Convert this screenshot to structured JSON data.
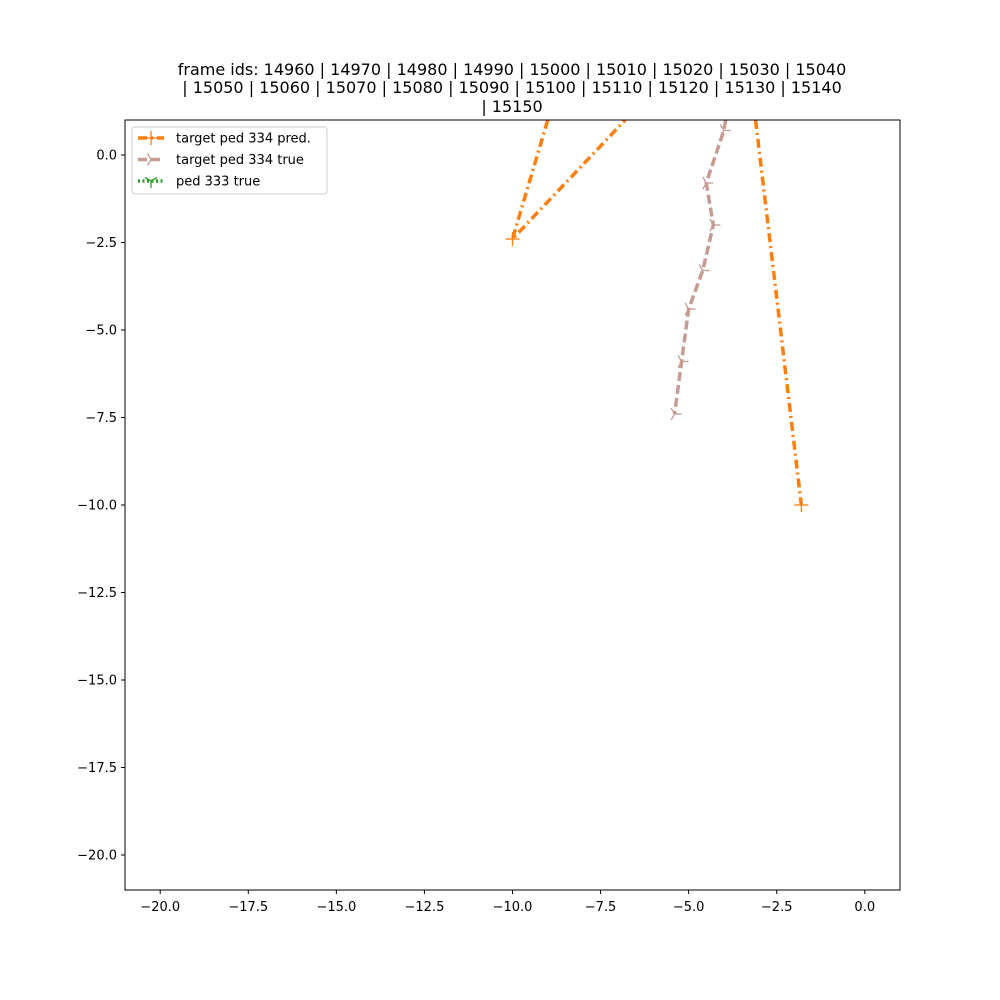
{
  "chart_data": {
    "type": "line",
    "title_lines": [
      "frame ids: 14960 | 14970 | 14980 | 14990 | 15000 | 15010 | 15020 | 15030 | 15040",
      "| 15050 | 15060 | 15070 | 15080 | 15090 | 15100 | 15110 | 15120 | 15130 | 15140",
      "| 15150"
    ],
    "xlabel": "",
    "ylabel": "",
    "xlim": [
      -21.0,
      1.0
    ],
    "ylim": [
      -21.0,
      1.0
    ],
    "x_ticks": [
      -20.0,
      -17.5,
      -15.0,
      -12.5,
      -10.0,
      -7.5,
      -5.0,
      -2.5,
      0.0
    ],
    "x_tick_labels": [
      "−20.0",
      "−17.5",
      "−15.0",
      "−12.5",
      "−10.0",
      "−7.5",
      "−5.0",
      "−2.5",
      "0.0"
    ],
    "y_ticks": [
      0.0,
      -2.5,
      -5.0,
      -7.5,
      -10.0,
      -12.5,
      -15.0,
      -17.5,
      -20.0
    ],
    "y_tick_labels": [
      "0.0",
      "−2.5",
      "−5.0",
      "−7.5",
      "−10.0",
      "−12.5",
      "−15.0",
      "−17.5",
      "−20.0"
    ],
    "grid": false,
    "legend_position": "upper-left",
    "series": [
      {
        "name": "target ped 334 pred.",
        "color": "#ff7f0e",
        "line_style": "dashdot",
        "marker": "plus",
        "segments": [
          {
            "points": [
              [
                -9.0,
                1.0
              ],
              [
                -10.0,
                -2.4
              ],
              [
                -6.8,
                1.0
              ]
            ],
            "markers": [
              [
                -10.0,
                -2.4
              ]
            ]
          },
          {
            "points": [
              [
                -3.1,
                1.0
              ],
              [
                -1.8,
                -10.0
              ]
            ],
            "markers": [
              [
                -1.8,
                -10.0
              ]
            ]
          }
        ]
      },
      {
        "name": "target ped 334 true",
        "color": "#c49c94",
        "line_style": "dashed",
        "marker": "tri_right",
        "segments": [
          {
            "points": [
              [
                -3.95,
                1.0
              ],
              [
                -4.0,
                0.7
              ],
              [
                -4.5,
                -0.8
              ],
              [
                -4.3,
                -2.0
              ],
              [
                -4.6,
                -3.3
              ],
              [
                -5.0,
                -4.4
              ],
              [
                -5.2,
                -5.9
              ],
              [
                -5.4,
                -7.4
              ]
            ],
            "markers": [
              [
                -4.0,
                0.7
              ],
              [
                -4.5,
                -0.8
              ],
              [
                -4.3,
                -2.0
              ],
              [
                -4.6,
                -3.3
              ],
              [
                -5.0,
                -4.4
              ],
              [
                -5.2,
                -5.9
              ],
              [
                -5.4,
                -7.4
              ]
            ]
          }
        ]
      },
      {
        "name": "ped 333 true",
        "color": "#2ca02c",
        "line_style": "dotted",
        "marker": "tri_down",
        "segments": []
      }
    ]
  }
}
